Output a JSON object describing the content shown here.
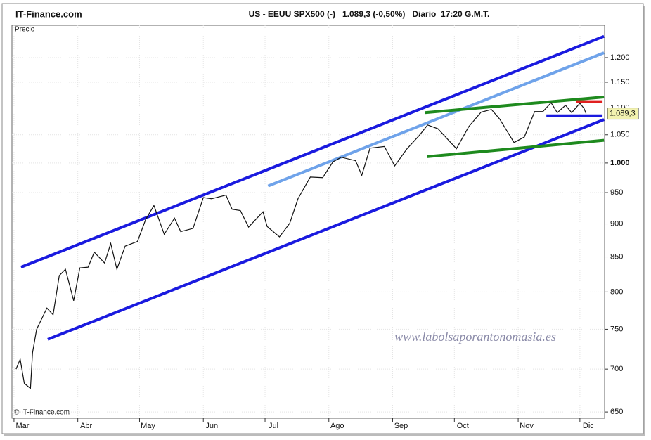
{
  "chart_data": {
    "type": "line",
    "brand": "IT-Finance.com",
    "title": "US - EEUU SPX500 (-)   1.089,3 (-0,50%)   Diario  17:20 G.M.T.",
    "y_label": "Precio",
    "copyright": "© IT-Finance.com",
    "watermark": "www.labolsaporantonomasia.es",
    "price_label": "1.089,3",
    "log_scale": true,
    "xlim": [
      -1,
      287
    ],
    "ylim": [
      643,
      1269
    ],
    "xticks": [
      {
        "value": 0,
        "label": "Mar"
      },
      {
        "value": 31,
        "label": "Abr"
      },
      {
        "value": 61,
        "label": "May"
      },
      {
        "value": 92,
        "label": "Jun"
      },
      {
        "value": 122,
        "label": "Jul"
      },
      {
        "value": 153,
        "label": "Ago"
      },
      {
        "value": 184,
        "label": "Sep"
      },
      {
        "value": 214,
        "label": "Oct"
      },
      {
        "value": 245,
        "label": "Nov"
      },
      {
        "value": 275,
        "label": "Dic"
      }
    ],
    "yticks": [
      650,
      700,
      750,
      800,
      850,
      900,
      950,
      {
        "value": 1000,
        "label": "1.000"
      },
      {
        "value": 1050,
        "label": "1.050"
      },
      {
        "value": 1100,
        "label": "1.100"
      },
      {
        "value": 1150,
        "label": "1.150"
      },
      {
        "value": 1200,
        "label": "1.200"
      }
    ],
    "series": [
      {
        "name": "SPX500",
        "color": "#111111",
        "x": [
          1,
          3,
          5,
          8,
          9,
          11,
          16,
          19,
          22,
          25,
          29,
          32,
          36,
          39,
          44,
          47,
          50,
          54,
          60,
          64,
          68,
          73,
          78,
          81,
          87,
          92,
          96,
          103,
          106,
          110,
          114,
          121,
          123,
          129,
          134,
          138,
          144,
          150,
          155,
          159,
          166,
          169,
          173,
          180,
          185,
          191,
          197,
          201,
          206,
          215,
          221,
          227,
          232,
          236,
          243,
          248,
          253,
          257,
          261,
          264,
          268,
          271,
          275,
          277,
          278
        ],
        "values": [
          700,
          712,
          683,
          677,
          720,
          750,
          778,
          769,
          823,
          832,
          788,
          834,
          835,
          857,
          841,
          870,
          832,
          866,
          873,
          907,
          929,
          884,
          909,
          888,
          893,
          942,
          940,
          946,
          923,
          921,
          895,
          919,
          896,
          880,
          901,
          940,
          976,
          975,
          1002,
          1010,
          1004,
          979,
          1026,
          1029,
          995,
          1025,
          1049,
          1068,
          1061,
          1025,
          1065,
          1092,
          1097,
          1079,
          1036,
          1046,
          1093,
          1093,
          1110,
          1091,
          1105,
          1091,
          1109,
          1099,
          1089.3
        ]
      }
    ],
    "overlays": [
      {
        "color": "#1a1adf",
        "x": [
          3.4,
          286.7
        ],
        "y": [
          835,
          1245
        ]
      },
      {
        "color": "#1a1adf",
        "x": [
          16.4,
          286.7
        ],
        "y": [
          737,
          1078
        ]
      },
      {
        "color": "#6fa3ea",
        "x": [
          123.5,
          286.7
        ],
        "y": [
          961,
          1210
        ]
      },
      {
        "color": "#1e8a1e",
        "x": [
          199.7,
          286.7
        ],
        "y": [
          1091,
          1121
        ]
      },
      {
        "color": "#1e8a1e",
        "x": [
          200.7,
          286.7
        ],
        "y": [
          1011,
          1040
        ]
      },
      {
        "color": "#e02020",
        "x": [
          273,
          286
        ],
        "y": [
          1112,
          1112
        ]
      },
      {
        "color": "#1a1adf",
        "x": [
          258.7,
          286
        ],
        "y": [
          1085,
          1085
        ]
      }
    ]
  }
}
